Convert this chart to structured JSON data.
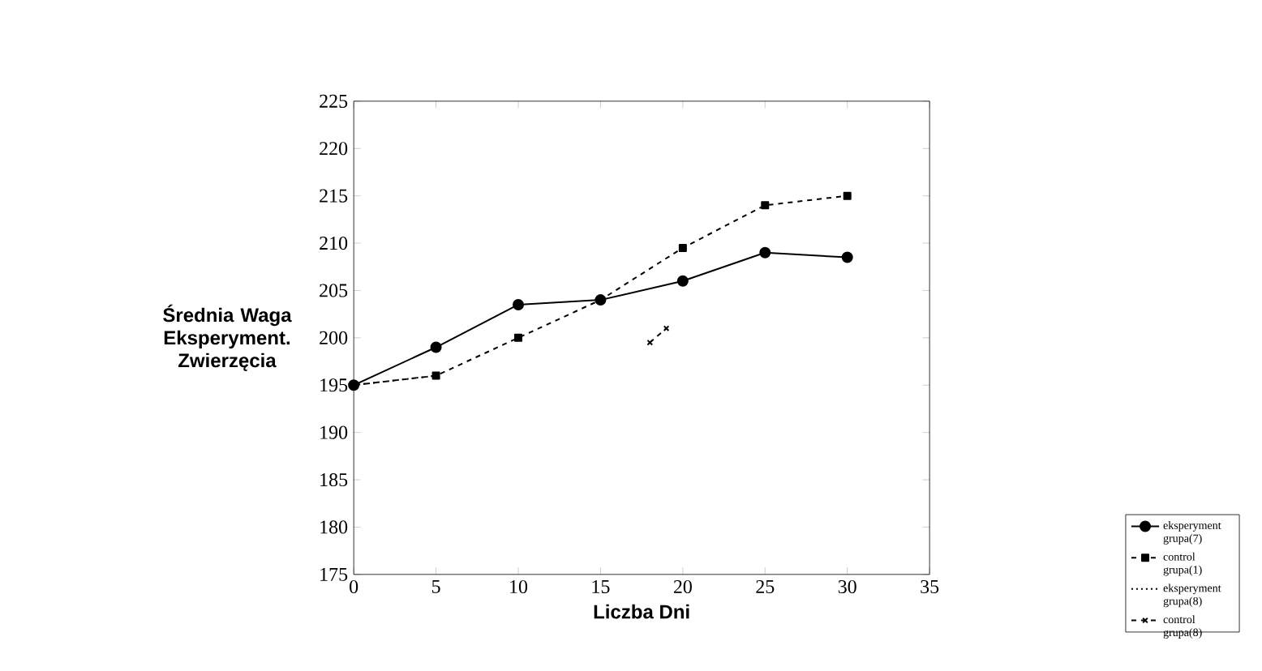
{
  "chart_data": {
    "type": "line",
    "xlabel": "Liczba Dni",
    "ylabel": "Średnia Waga Eksperyment. Zwierzęcia",
    "x": [
      0,
      5,
      10,
      15,
      20,
      25,
      30
    ],
    "series": [
      {
        "name": "eksperyment grupa(7)",
        "color": "#000000",
        "marker": "circle",
        "line_style": "solid",
        "values": [
          195,
          199,
          203.5,
          204,
          206,
          209,
          208.5
        ]
      },
      {
        "name": "control grupa(1)",
        "color": "#000000",
        "marker": "square",
        "line_style": "dashed",
        "values": [
          195,
          196,
          200,
          204,
          209.5,
          214,
          215
        ]
      },
      {
        "name": "eksperyment grupa(8)",
        "color": "#000000",
        "line_style": "dotted",
        "values": [
          195,
          196,
          null,
          null,
          null,
          null,
          null
        ]
      },
      {
        "name": "control grupa(8)",
        "color": "#000000",
        "marker": "cross",
        "line_style": "dashed",
        "x": [
          18,
          19
        ],
        "values": [
          199.5,
          201
        ]
      }
    ],
    "xlim": [
      0,
      35
    ],
    "xticks": [
      0,
      5,
      10,
      15,
      20,
      25,
      30,
      35
    ],
    "ylim": [
      175,
      225
    ],
    "yticks": [
      175,
      180,
      185,
      190,
      195,
      200,
      205,
      210,
      215,
      220,
      225
    ],
    "legend": "bottom right"
  }
}
